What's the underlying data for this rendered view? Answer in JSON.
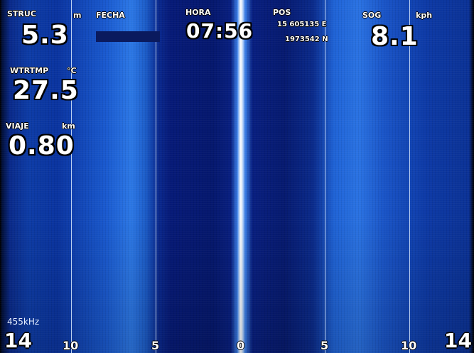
{
  "overlay": {
    "struc": {
      "label": "STRUC",
      "unit": "m",
      "value": "5.3"
    },
    "fecha": {
      "label": "FECHA"
    },
    "hora": {
      "label": "HORA",
      "value": "07:56"
    },
    "pos": {
      "label": "POS",
      "line1": "15  605135 E",
      "line2": "1973542 N"
    },
    "sog": {
      "label": "SOG",
      "unit": "kph",
      "value": "8.1"
    },
    "wtrtmp": {
      "label": "WTRTMP",
      "unit": "°C",
      "value": "27.5"
    },
    "viaje": {
      "label": "VIAJE",
      "unit": "km",
      "value": "0.80"
    }
  },
  "frequency": "455kHz",
  "range": {
    "left": "14",
    "right": "14"
  },
  "scale_ticks": [
    "10",
    "5",
    "0",
    "5",
    "10"
  ],
  "colors": {
    "sonar_blue": "#0d3ca6",
    "sonar_bright": "#2c78e6",
    "centerline": "#ffffff"
  }
}
